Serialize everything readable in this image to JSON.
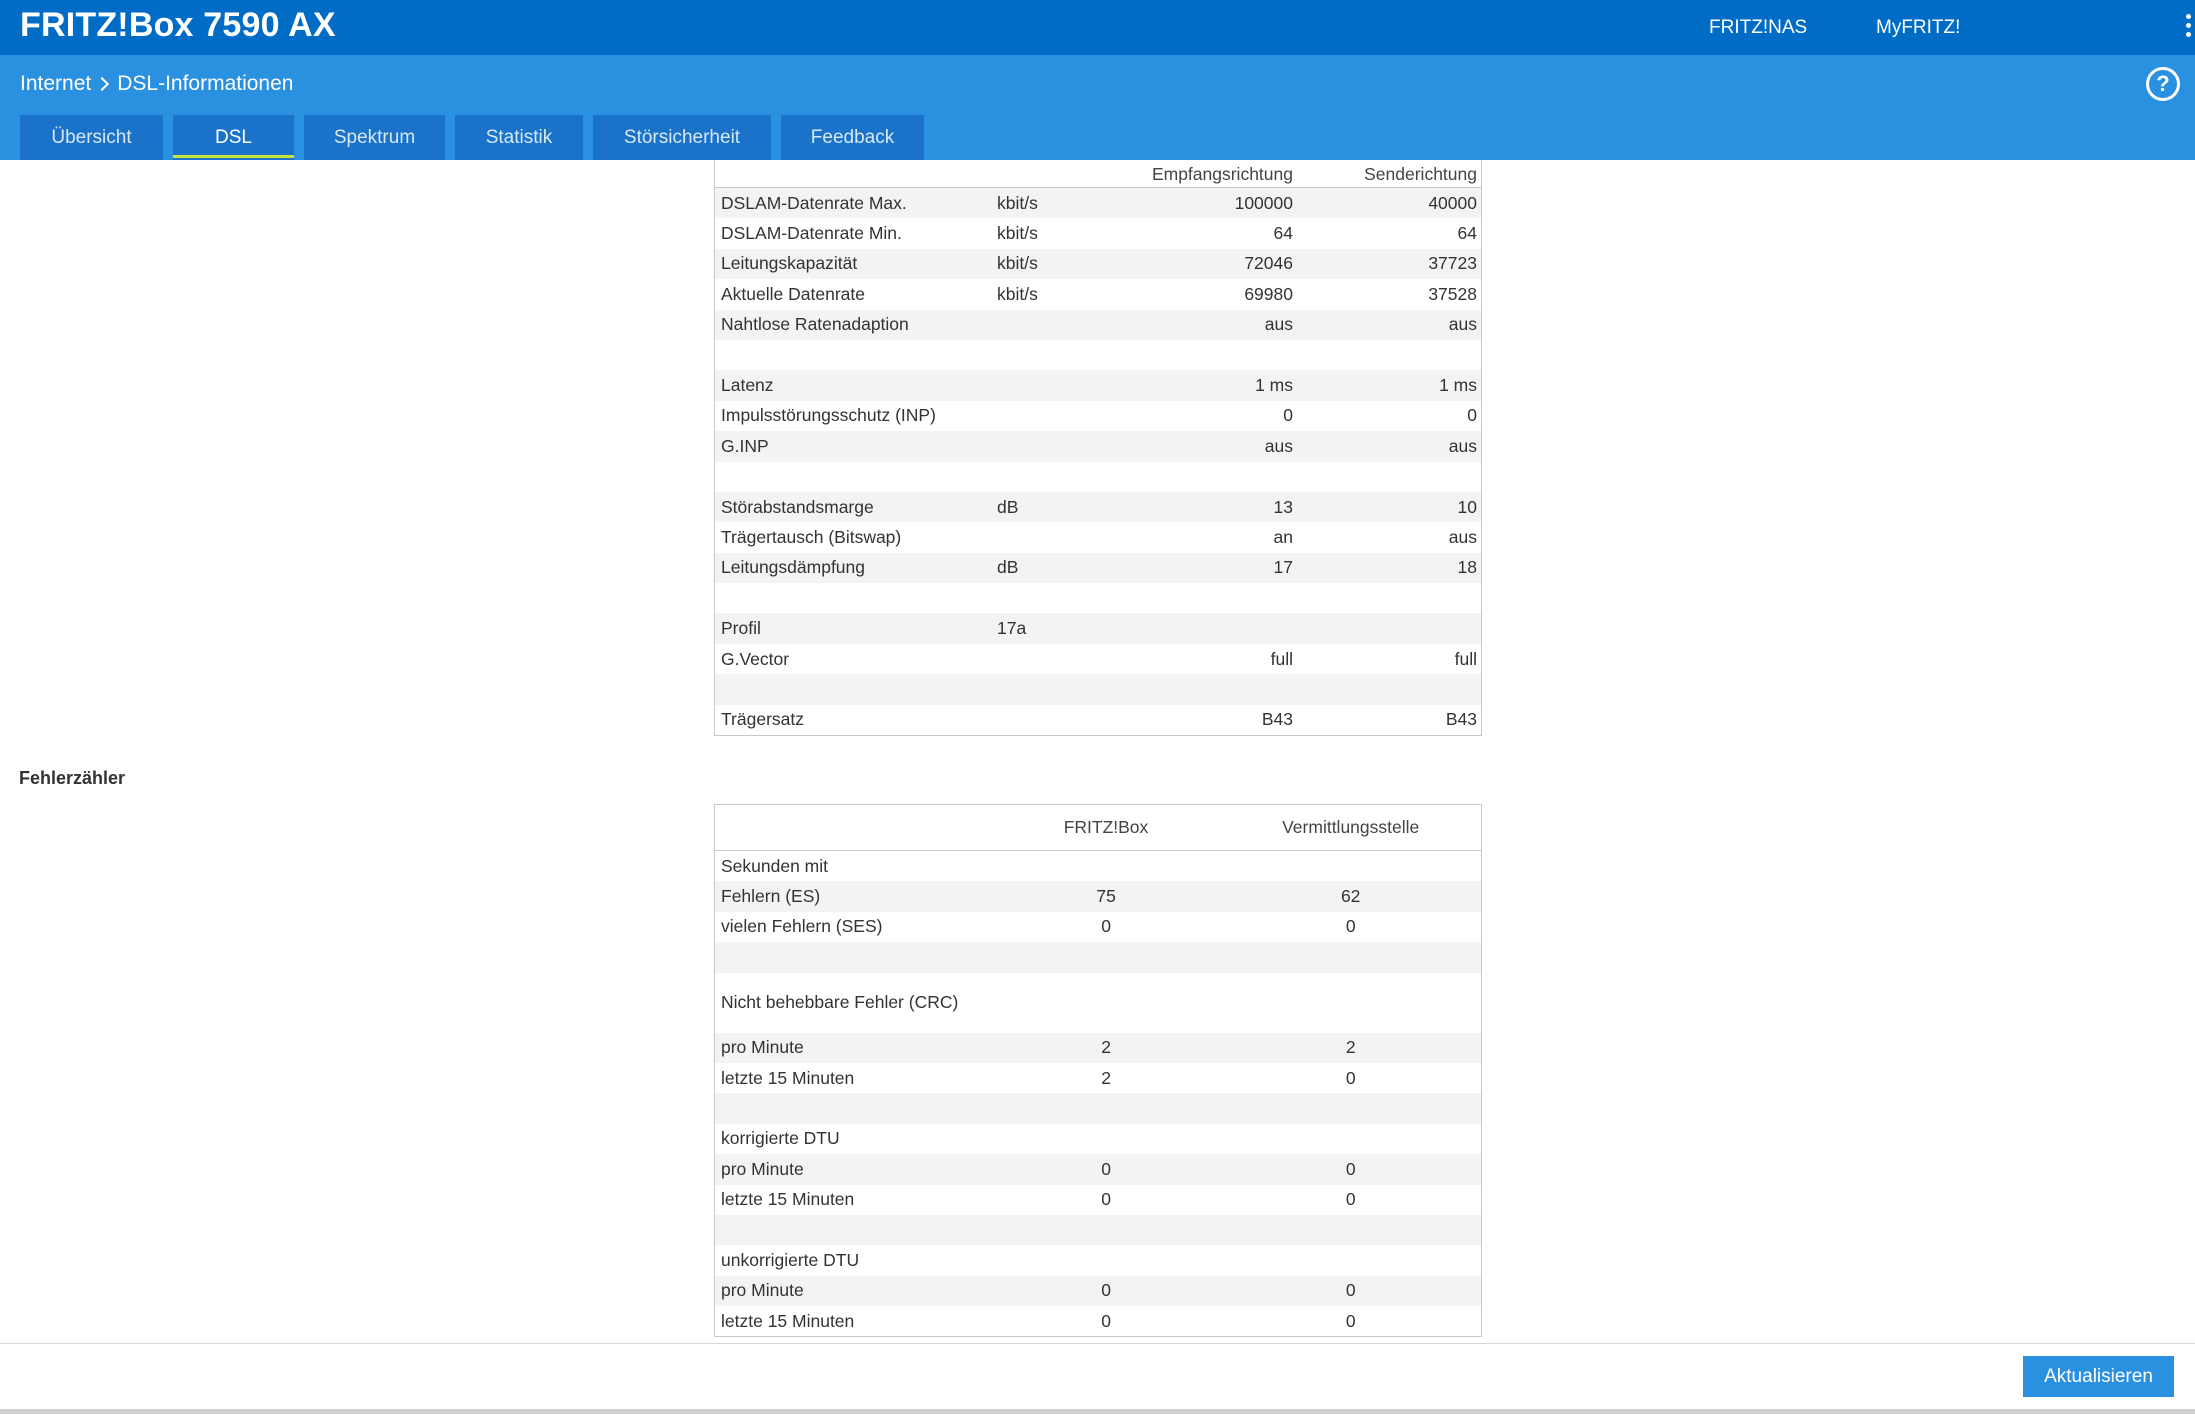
{
  "header": {
    "product": "FRITZ!Box 7590 AX",
    "links": [
      "FRITZ!NAS",
      "MyFRITZ!"
    ],
    "help": "?"
  },
  "breadcrumb": {
    "parent": "Internet",
    "current": "DSL-Informationen"
  },
  "tabs": [
    "Übersicht",
    "DSL",
    "Spektrum",
    "Statistik",
    "Störsicherheit",
    "Feedback"
  ],
  "active_tab": "DSL",
  "dsl_table": {
    "headers": [
      "",
      "",
      "Empfangsrichtung",
      "Senderichtung"
    ],
    "rows": [
      [
        "DSLAM-Datenrate Max.",
        "kbit/s",
        "100000",
        "40000"
      ],
      [
        "DSLAM-Datenrate Min.",
        "kbit/s",
        "64",
        "64"
      ],
      [
        "Leitungskapazität",
        "kbit/s",
        "72046",
        "37723"
      ],
      [
        "Aktuelle Datenrate",
        "kbit/s",
        "69980",
        "37528"
      ],
      [
        "Nahtlose Ratenadaption",
        "",
        "aus",
        "aus"
      ],
      [
        "",
        "",
        "",
        ""
      ],
      [
        "Latenz",
        "",
        "1 ms",
        "1 ms"
      ],
      [
        "Impulsstörungsschutz (INP)",
        "",
        "0",
        "0"
      ],
      [
        "G.INP",
        "",
        "aus",
        "aus"
      ],
      [
        "",
        "",
        "",
        ""
      ],
      [
        "Störabstandsmarge",
        "dB",
        "13",
        "10"
      ],
      [
        "Trägertausch (Bitswap)",
        "",
        "an",
        "aus"
      ],
      [
        "Leitungsdämpfung",
        "dB",
        "17",
        "18"
      ],
      [
        "",
        "",
        "",
        ""
      ],
      [
        "Profil",
        "17a",
        "",
        ""
      ],
      [
        "G.Vector",
        "",
        "full",
        "full"
      ],
      [
        "",
        "",
        "",
        ""
      ],
      [
        "Trägersatz",
        "",
        "B43",
        "B43"
      ]
    ]
  },
  "error_section": {
    "title": "Fehlerzähler",
    "headers": [
      "",
      "FRITZ!Box",
      "Vermittlungsstelle"
    ],
    "rows": [
      [
        "Sekunden mit",
        "",
        ""
      ],
      [
        "Fehlern (ES)",
        "75",
        "62"
      ],
      [
        "vielen Fehlern (SES)",
        "0",
        "0"
      ],
      [
        "",
        "",
        ""
      ],
      [
        "Nicht behebbare Fehler (CRC)",
        "",
        ""
      ],
      [
        "pro Minute",
        "2",
        "2"
      ],
      [
        "letzte 15 Minuten",
        "2",
        "0"
      ],
      [
        "",
        "",
        ""
      ],
      [
        "korrigierte DTU",
        "",
        ""
      ],
      [
        "pro Minute",
        "0",
        "0"
      ],
      [
        "letzte 15 Minuten",
        "0",
        "0"
      ],
      [
        "",
        "",
        ""
      ],
      [
        "unkorrigierte DTU",
        "",
        ""
      ],
      [
        "pro Minute",
        "0",
        "0"
      ],
      [
        "letzte 15 Minuten",
        "0",
        "0"
      ]
    ]
  },
  "footer": {
    "refresh_label": "Aktualisieren"
  }
}
